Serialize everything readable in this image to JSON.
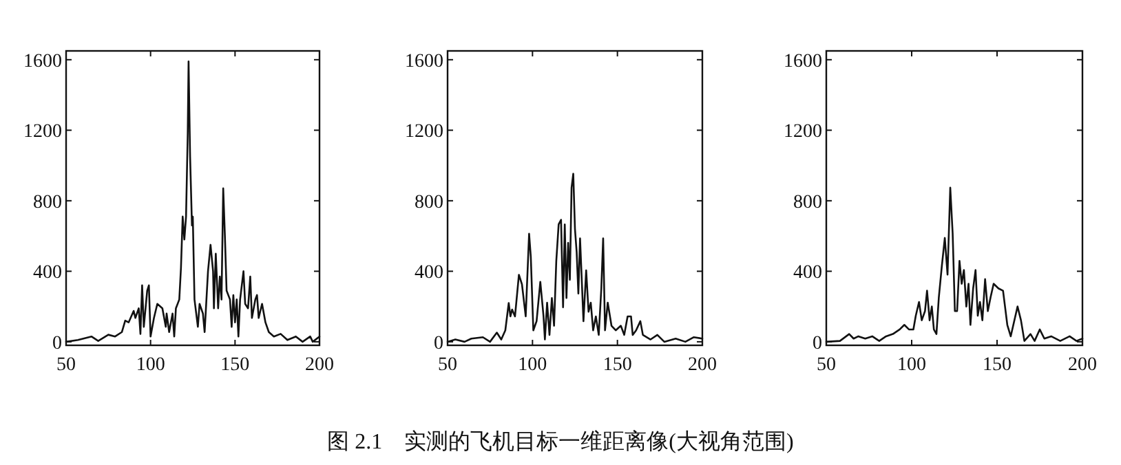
{
  "chart_data": [
    {
      "type": "line",
      "xlim": [
        50,
        200
      ],
      "ylim": [
        -20,
        1650
      ],
      "xticks": [
        50,
        100,
        150,
        200
      ],
      "yticks": [
        0,
        400,
        800,
        1200,
        1600
      ],
      "annotations": [
        "图 2.1　实测的飞机目标一维距离像(大视角范围)"
      ],
      "x": [
        50,
        57,
        65,
        69,
        75,
        79,
        83,
        85,
        87,
        90,
        91,
        93,
        94,
        95,
        96,
        98,
        99,
        100,
        102,
        104,
        107,
        109,
        109.5,
        111,
        113,
        114,
        115,
        117,
        118,
        119,
        120,
        121,
        122,
        122.5,
        123.4,
        124.5,
        125,
        126,
        128,
        129,
        131,
        132,
        134,
        135.5,
        137,
        137.5,
        138.6,
        140,
        141,
        142,
        143,
        144,
        145,
        147,
        148,
        149,
        150,
        151,
        152,
        153,
        155,
        156,
        157.7,
        159,
        160,
        162,
        163,
        164,
        166,
        168,
        170,
        173,
        177,
        181,
        186,
        190,
        194.5,
        196,
        200
      ],
      "values": [
        0,
        10,
        30,
        5,
        40,
        30,
        55,
        120,
        110,
        175,
        135,
        190,
        45,
        320,
        85,
        290,
        320,
        30,
        135,
        215,
        190,
        85,
        160,
        55,
        160,
        30,
        190,
        240,
        420,
        710,
        580,
        710,
        1180,
        1590,
        1050,
        660,
        710,
        240,
        85,
        215,
        160,
        55,
        400,
        550,
        400,
        190,
        500,
        190,
        370,
        240,
        870,
        600,
        290,
        240,
        85,
        265,
        110,
        240,
        30,
        240,
        400,
        215,
        190,
        370,
        135,
        240,
        265,
        135,
        215,
        110,
        55,
        30,
        45,
        10,
        30,
        0,
        30,
        0,
        30
      ]
    },
    {
      "type": "line",
      "xlim": [
        50,
        200
      ],
      "ylim": [
        -20,
        1650
      ],
      "xticks": [
        50,
        100,
        150,
        200
      ],
      "yticks": [
        0,
        400,
        800,
        1200,
        1600
      ],
      "x": [
        50,
        54.6,
        60,
        64,
        70.8,
        75,
        79,
        81.6,
        84,
        86,
        87,
        88,
        89.7,
        92,
        93.8,
        96,
        98,
        99,
        100.5,
        102.4,
        104.6,
        106.5,
        107.3,
        108.6,
        110,
        111.4,
        112.7,
        114,
        115.4,
        116.8,
        118,
        119,
        120,
        121,
        122,
        123,
        124,
        125,
        126,
        127,
        128,
        130,
        131.6,
        133,
        134.3,
        135.7,
        137.3,
        139,
        140.5,
        141.6,
        142.7,
        144.3,
        146.5,
        149,
        152,
        154,
        156,
        158,
        159,
        161,
        163.5,
        165,
        169.5,
        173.5,
        177.6,
        184.3,
        190,
        195,
        200
      ],
      "values": [
        0,
        13,
        0,
        18,
        26,
        0,
        52,
        13,
        65,
        220,
        144,
        183,
        144,
        380,
        326,
        144,
        613,
        483,
        65,
        117,
        340,
        144,
        13,
        222,
        39,
        248,
        91,
        457,
        666,
        692,
        196,
        666,
        248,
        561,
        352,
        874,
        953,
        640,
        509,
        274,
        587,
        117,
        405,
        170,
        222,
        65,
        144,
        39,
        300,
        587,
        65,
        222,
        91,
        65,
        91,
        39,
        144,
        144,
        39,
        65,
        117,
        39,
        13,
        39,
        0,
        18,
        0,
        26,
        18
      ]
    },
    {
      "type": "line",
      "xlim": [
        50,
        200
      ],
      "ylim": [
        -20,
        1650
      ],
      "xticks": [
        50,
        100,
        150,
        200
      ],
      "yticks": [
        0,
        400,
        800,
        1200,
        1600
      ],
      "x": [
        50,
        58,
        63.4,
        66,
        68.8,
        72.8,
        76.9,
        81,
        85,
        89,
        93,
        95.7,
        98.4,
        101,
        102.4,
        104.3,
        105.9,
        107.8,
        109,
        110.5,
        111.8,
        113,
        114.5,
        115.9,
        117.7,
        119.4,
        121,
        122.6,
        124,
        125.3,
        126.6,
        128,
        129.3,
        130.6,
        132,
        133.3,
        134.4,
        136,
        137.4,
        138.7,
        140,
        141.4,
        143,
        144.6,
        146.2,
        148,
        150.8,
        153.5,
        156,
        158,
        162,
        164,
        166,
        169.6,
        172,
        175,
        177.7,
        181.7,
        187,
        192.5,
        196.5,
        200
      ],
      "values": [
        0,
        5,
        44,
        18,
        31,
        18,
        31,
        5,
        31,
        44,
        70,
        96,
        70,
        70,
        148,
        226,
        122,
        174,
        290,
        122,
        200,
        70,
        44,
        252,
        433,
        589,
        381,
        874,
        615,
        174,
        174,
        459,
        329,
        407,
        200,
        329,
        96,
        303,
        407,
        148,
        226,
        122,
        355,
        174,
        252,
        329,
        303,
        290,
        96,
        31,
        200,
        122,
        5,
        44,
        5,
        70,
        18,
        31,
        5,
        31,
        5,
        18
      ]
    }
  ]
}
